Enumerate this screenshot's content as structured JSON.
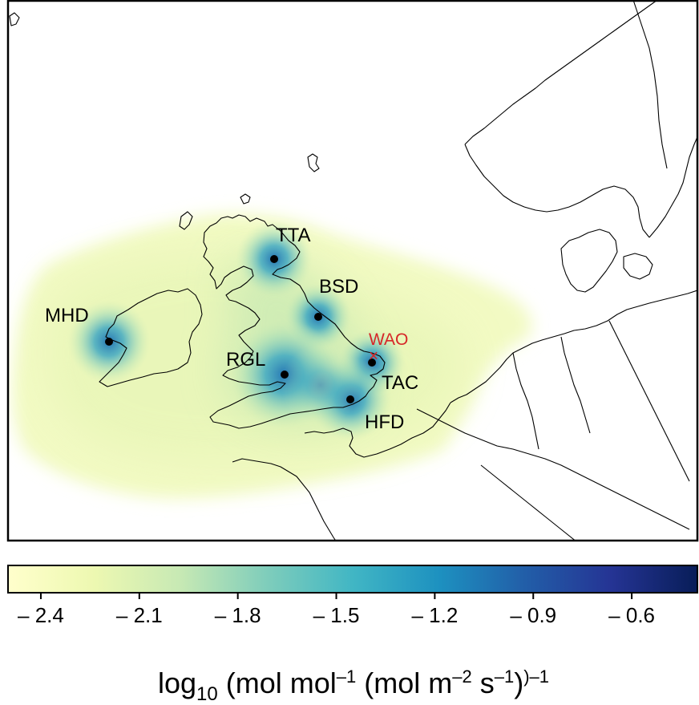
{
  "map": {
    "sites": [
      {
        "code": "TTA"
      },
      {
        "code": "BSD"
      },
      {
        "code": "MHD"
      },
      {
        "code": "RGL"
      },
      {
        "code": "TAC"
      },
      {
        "code": "HFD"
      }
    ],
    "reference_site": {
      "code": "WAO",
      "marker": "×",
      "color": "#d62728"
    },
    "colormap": [
      "#ffffcc",
      "#edf8b1",
      "#c7e9b4",
      "#7fcdbb",
      "#41b6c4",
      "#1d91c0",
      "#225ea8",
      "#253494",
      "#081d58"
    ]
  },
  "colorbar": {
    "ticks": [
      "– 2.4",
      "– 2.1",
      "– 1.8",
      "– 1.5",
      "– 1.2",
      "– 0.9",
      "– 0.6"
    ],
    "tick_values": [
      -2.4,
      -2.1,
      -1.8,
      -1.5,
      -1.2,
      -0.9,
      -0.6
    ],
    "range": [
      -2.5,
      -0.4
    ],
    "label": {
      "prefix": "log",
      "sub": "10",
      "part1": " (mol mol",
      "sup1": "–1",
      "part2": " (mol m",
      "sup2": "–2",
      "part3": " s",
      "sup3": "–1",
      "part4": ")",
      "sup4": ")–1"
    }
  }
}
